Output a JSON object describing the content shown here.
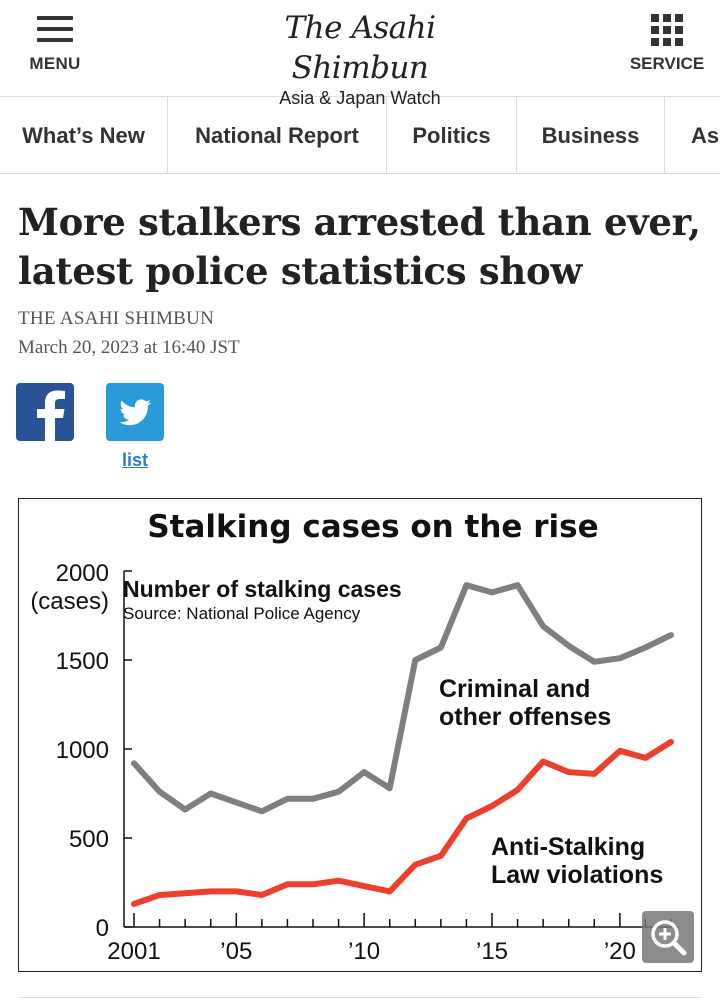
{
  "header": {
    "menu_label": "MENU",
    "logo_text": "The Asahi Shimbun",
    "tagline": "Asia & Japan Watch",
    "service_label": "SERVICE"
  },
  "nav": {
    "tabs": [
      {
        "label": "What’s New"
      },
      {
        "label": "National Report"
      },
      {
        "label": "Politics"
      },
      {
        "label": "Business"
      },
      {
        "label": "As"
      }
    ]
  },
  "article": {
    "headline": "More stalkers arrested than ever, latest police statistics show",
    "byline": "THE ASAHI SHIMBUN",
    "date": "March 20, 2023 at 16:40 JST",
    "share": {
      "facebook_icon": "facebook-icon",
      "twitter_icon": "twitter-icon",
      "list_label": "list",
      "facebook_color": "#2a5297",
      "twitter_color": "#2a9ad8"
    }
  },
  "chart_data": {
    "type": "line",
    "title": "Stalking cases on the rise",
    "subtitle": "Number of stalking cases",
    "source": "Source: National Police Agency",
    "ylabel_top": "2000",
    "ylabel_unit": "(cases)",
    "ylim": [
      0,
      2000
    ],
    "yticks": [
      0,
      500,
      1000,
      1500,
      2000
    ],
    "ytick_labels": [
      "0",
      "500",
      "1000",
      "1500",
      "2000"
    ],
    "xlim": [
      2001,
      2022
    ],
    "xticks": [
      2001,
      2005,
      2010,
      2015,
      2020
    ],
    "xtick_labels": [
      "2001",
      "’05",
      "’10",
      "’15",
      "’20"
    ],
    "grid": false,
    "series": [
      {
        "name": "Criminal and other offenses",
        "label_lines": [
          "Criminal and",
          "other offenses"
        ],
        "color": "#7f7f7f",
        "x": [
          2001,
          2002,
          2003,
          2004,
          2005,
          2006,
          2007,
          2008,
          2009,
          2010,
          2011,
          2012,
          2013,
          2014,
          2015,
          2016,
          2017,
          2018,
          2019,
          2020,
          2021,
          2022
        ],
        "values": [
          920,
          760,
          660,
          750,
          700,
          650,
          720,
          720,
          760,
          870,
          780,
          1500,
          1570,
          1920,
          1880,
          1920,
          1690,
          1580,
          1490,
          1510,
          1570,
          1640
        ]
      },
      {
        "name": "Anti-Stalking Law violations",
        "label_lines": [
          "Anti-Stalking",
          "Law violations"
        ],
        "color": "#ee3e2c",
        "x": [
          2001,
          2002,
          2003,
          2004,
          2005,
          2006,
          2007,
          2008,
          2009,
          2010,
          2011,
          2012,
          2013,
          2014,
          2015,
          2016,
          2017,
          2018,
          2019,
          2020,
          2021,
          2022
        ],
        "values": [
          130,
          180,
          190,
          200,
          200,
          180,
          240,
          240,
          260,
          230,
          200,
          350,
          400,
          610,
          680,
          770,
          930,
          870,
          860,
          990,
          950,
          1040
        ]
      }
    ],
    "zoom_icon": "zoom-in-icon"
  }
}
